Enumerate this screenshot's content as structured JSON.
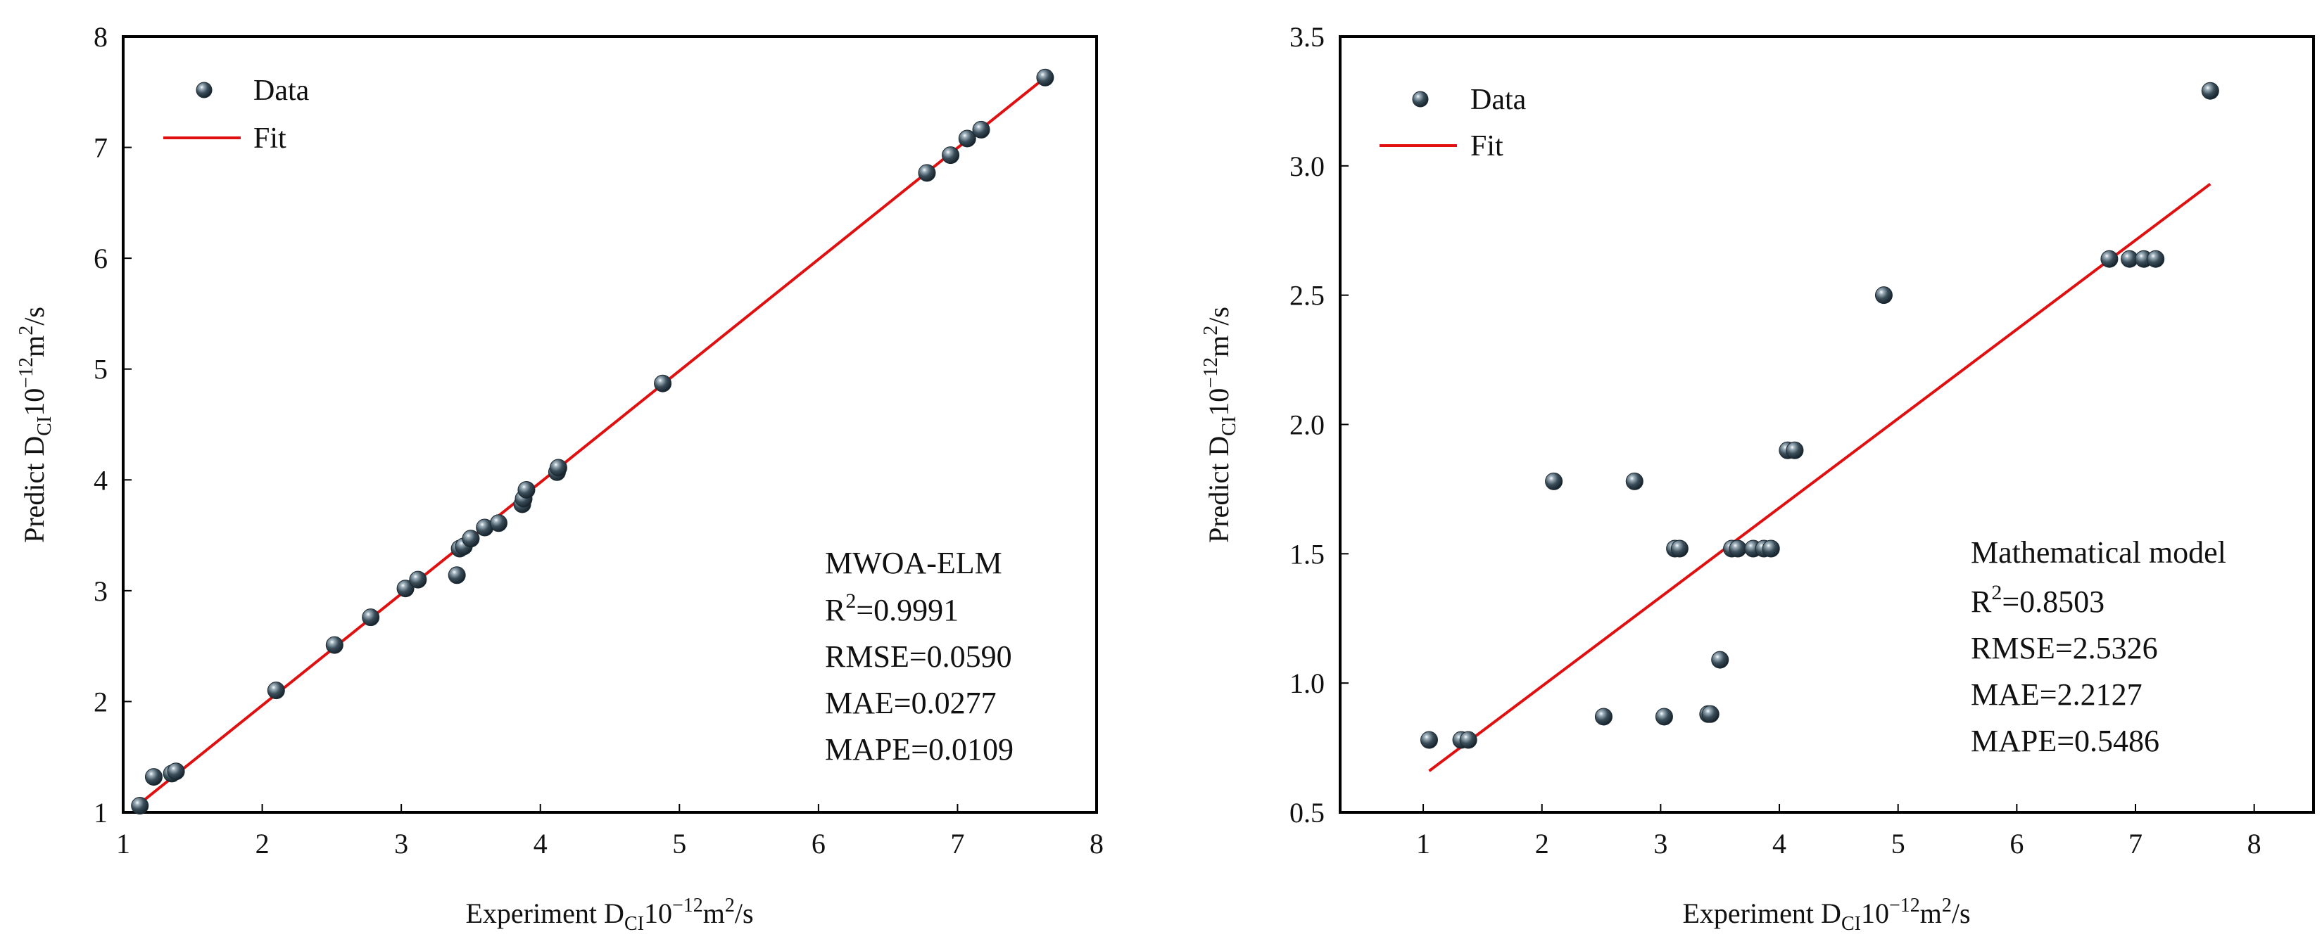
{
  "charts": [
    {
      "id": "left",
      "legend": {
        "data_label": "Data",
        "fit_label": "Fit"
      },
      "xlabel": {
        "prefix": "Experiment D",
        "sub": "CI",
        "mid": "10",
        "sup1": "−12",
        "unit": "m",
        "sup2": "2",
        "suffix": "/s"
      },
      "ylabel": {
        "prefix": "Predict D",
        "sub": "CI",
        "mid": "10",
        "sup1": "−12",
        "unit": "m",
        "sup2": "2",
        "suffix": "/s"
      },
      "annotation": {
        "title": "MWOA-ELM",
        "r2_label": "R",
        "r2_sup": "2",
        "r2_value": "=0.9991",
        "rmse": "RMSE=0.0590",
        "mae": "MAE=0.0277",
        "mape": "MAPE=0.0109"
      }
    },
    {
      "id": "right",
      "legend": {
        "data_label": "Data",
        "fit_label": "Fit"
      },
      "xlabel": {
        "prefix": "Experiment D",
        "sub": "CI",
        "mid": "10",
        "sup1": "−12",
        "unit": "m",
        "sup2": "2",
        "suffix": "/s"
      },
      "ylabel": {
        "prefix": "Predict D",
        "sub": "CI",
        "mid": "10",
        "sup1": "−12",
        "unit": "m",
        "sup2": "2",
        "suffix": "/s"
      },
      "annotation": {
        "title": "Mathematical model",
        "r2_label": "R",
        "r2_sup": "2",
        "r2_value": "=0.8503",
        "rmse": "RMSE=2.5326",
        "mae": "MAE=2.2127",
        "mape": "MAPE=0.5486"
      }
    }
  ],
  "chart_data": [
    {
      "type": "scatter",
      "title": "",
      "xlim": [
        1,
        8
      ],
      "ylim": [
        1,
        8
      ],
      "xticks": [
        1,
        2,
        3,
        4,
        5,
        6,
        7,
        8
      ],
      "yticks": [
        1,
        2,
        3,
        4,
        5,
        6,
        7,
        8
      ],
      "xtick_labels": [
        "1",
        "2",
        "3",
        "4",
        "5",
        "6",
        "7",
        "8"
      ],
      "ytick_labels": [
        "1",
        "2",
        "3",
        "4",
        "5",
        "6",
        "7",
        "8"
      ],
      "series": [
        {
          "name": "Data",
          "kind": "points",
          "x": [
            1.12,
            1.22,
            1.35,
            1.38,
            2.1,
            2.52,
            2.78,
            3.03,
            3.12,
            3.4,
            3.42,
            3.45,
            3.5,
            3.6,
            3.7,
            3.87,
            3.88,
            3.9,
            4.12,
            4.13,
            4.88,
            6.78,
            6.95,
            7.07,
            7.17,
            7.63
          ],
          "y": [
            1.06,
            1.32,
            1.35,
            1.37,
            2.1,
            2.51,
            2.76,
            3.02,
            3.1,
            3.14,
            3.38,
            3.4,
            3.47,
            3.57,
            3.61,
            3.78,
            3.83,
            3.91,
            4.07,
            4.11,
            4.87,
            6.77,
            6.93,
            7.08,
            7.16,
            7.63
          ]
        },
        {
          "name": "Fit",
          "kind": "line",
          "x": [
            1.12,
            7.63
          ],
          "y": [
            1.08,
            7.63
          ],
          "color": "#e01010"
        }
      ],
      "legend_position": "top-left",
      "annotation_position": "bottom-right",
      "marker_color": "#2d3f4b"
    },
    {
      "type": "scatter",
      "title": "",
      "xlim": [
        0.3,
        8.5
      ],
      "ylim": [
        0.5,
        3.5
      ],
      "xticks": [
        1,
        2,
        3,
        4,
        5,
        6,
        7,
        8
      ],
      "yticks": [
        0.5,
        1.0,
        1.5,
        2.0,
        2.5,
        3.0,
        3.5
      ],
      "xtick_labels": [
        "1",
        "2",
        "3",
        "4",
        "5",
        "6",
        "7",
        "8"
      ],
      "ytick_labels": [
        "0.5",
        "1.0",
        "1.5",
        "2.0",
        "2.5",
        "3.0",
        "3.5"
      ],
      "series": [
        {
          "name": "Data",
          "kind": "points",
          "x": [
            1.05,
            1.32,
            1.38,
            2.1,
            2.52,
            2.78,
            3.03,
            3.12,
            3.16,
            3.4,
            3.42,
            3.5,
            3.6,
            3.65,
            3.78,
            3.87,
            3.93,
            4.07,
            4.13,
            4.88,
            6.78,
            6.95,
            7.07,
            7.17,
            7.63
          ],
          "y": [
            0.78,
            0.78,
            0.78,
            1.78,
            0.87,
            1.78,
            0.87,
            1.52,
            1.52,
            0.88,
            0.88,
            1.09,
            1.52,
            1.52,
            1.52,
            1.52,
            1.52,
            1.9,
            1.9,
            2.5,
            2.64,
            2.64,
            2.64,
            2.64,
            3.29
          ]
        },
        {
          "name": "Fit",
          "kind": "line",
          "x": [
            1.05,
            7.63
          ],
          "y": [
            0.66,
            2.93
          ],
          "color": "#e01010"
        }
      ],
      "legend_position": "top-left",
      "annotation_position": "bottom-right",
      "marker_color": "#2d3f4b"
    }
  ]
}
